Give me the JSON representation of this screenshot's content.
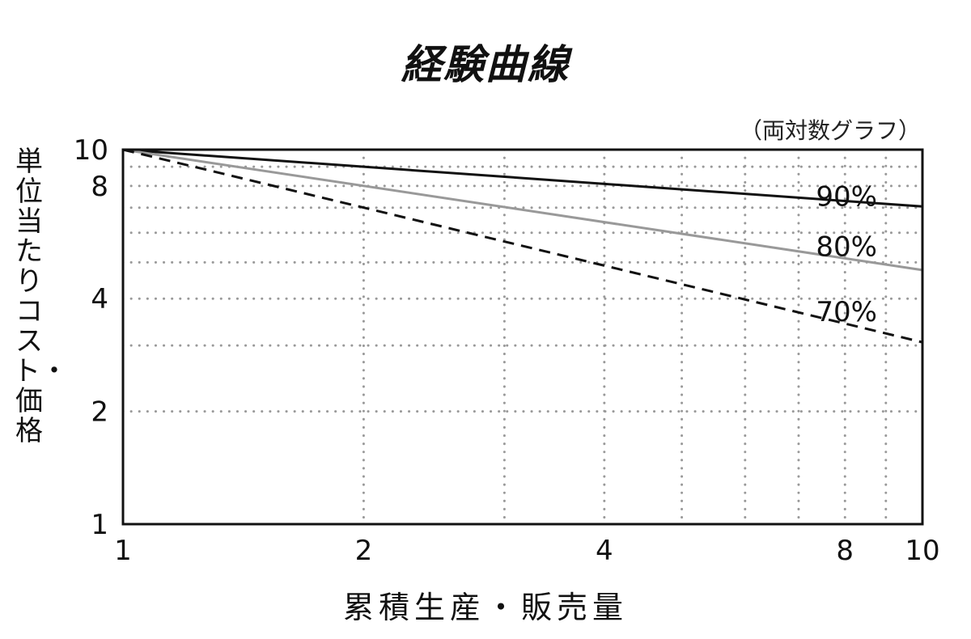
{
  "chart_data": {
    "type": "line",
    "title": "経験曲線",
    "note": "（両対数グラフ）",
    "xlabel": "累積生産・販売量",
    "ylabel": "単位当たりコスト・価格",
    "xscale": "log",
    "yscale": "log",
    "xlim": [
      1,
      10
    ],
    "ylim": [
      1,
      10
    ],
    "x_ticks": [
      1,
      2,
      4,
      8,
      10
    ],
    "y_ticks": [
      1,
      2,
      4,
      8,
      10
    ],
    "grid": true,
    "series": [
      {
        "name": "90%",
        "x": [
          1,
          10
        ],
        "y": [
          10,
          7.05
        ],
        "color": "#111111",
        "style": "solid"
      },
      {
        "name": "80%",
        "x": [
          1,
          10
        ],
        "y": [
          10,
          4.77
        ],
        "color": "#999999",
        "style": "solid"
      },
      {
        "name": "70%",
        "x": [
          1,
          10
        ],
        "y": [
          10,
          3.06
        ],
        "color": "#111111",
        "style": "dashed"
      }
    ]
  }
}
